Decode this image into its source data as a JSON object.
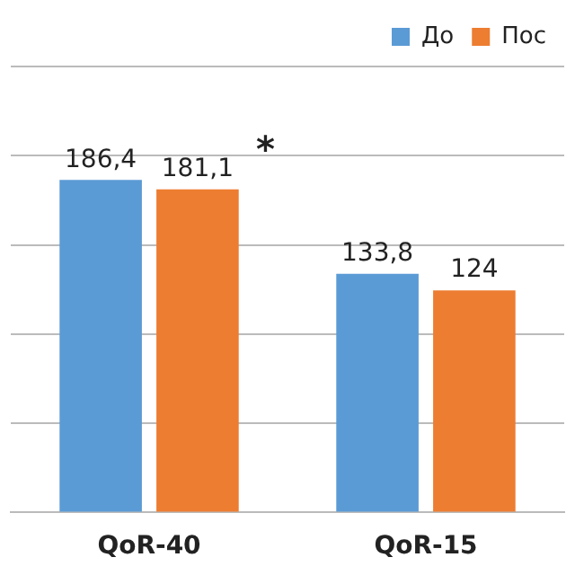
{
  "chart_data": {
    "type": "bar",
    "categories": [
      "QoR-40",
      "QoR-15"
    ],
    "series": [
      {
        "name": "До",
        "color": "#5b9bd5",
        "values": [
          186.4,
          133.8
        ],
        "value_labels": [
          "186,4",
          "133,8"
        ]
      },
      {
        "name": "Пос",
        "color": "#ed7d31",
        "values": [
          181.1,
          124.5
        ],
        "value_labels": [
          "181,1",
          "124"
        ]
      }
    ],
    "ylim": [
      0,
      250
    ],
    "yticks": [
      {
        "value": 0,
        "label": null
      },
      {
        "value": 50,
        "label": null
      },
      {
        "value": 100,
        "label": null
      },
      {
        "value": 150,
        "label": null
      },
      {
        "value": 200,
        "label": null
      },
      {
        "value": 250,
        "label": null
      }
    ],
    "grid": "y",
    "legend": "top right",
    "tick_labels": "x",
    "annotations": [
      "*"
    ]
  }
}
